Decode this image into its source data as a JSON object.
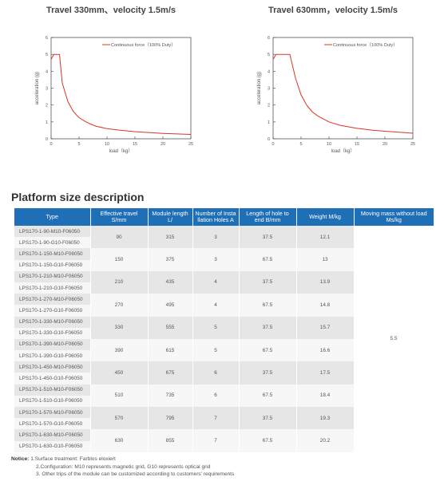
{
  "chart_data": [
    {
      "type": "line",
      "title": "Travel 330mm、velocity 1.5m/s",
      "xlabel": "load（kg）",
      "ylabel": "acceleration (g)",
      "xlim": [
        0,
        25
      ],
      "ylim": [
        0,
        6
      ],
      "xticks": [
        "0",
        "5",
        "10",
        "15",
        "20",
        "25"
      ],
      "yticks": [
        "0",
        "1",
        "2",
        "3",
        "4",
        "5",
        "6"
      ],
      "grid": false,
      "legend_position": "top-right",
      "series": [
        {
          "name": "Continuous force（100% Duty）",
          "color": "#d9352a",
          "x": [
            0,
            0.5,
            1,
            1.5,
            2,
            3,
            4,
            5,
            6,
            7,
            8,
            10,
            12,
            15,
            18,
            20,
            22,
            25
          ],
          "y": [
            4.7,
            5,
            5,
            5,
            3.3,
            2.2,
            1.6,
            1.25,
            1.05,
            0.88,
            0.75,
            0.6,
            0.52,
            0.42,
            0.36,
            0.32,
            0.3,
            0.26
          ]
        }
      ]
    },
    {
      "type": "line",
      "title": "Travel 630mm，velocity 1.5m/s",
      "xlabel": "load（kg）",
      "ylabel": "acceleration (g)",
      "xlim": [
        0,
        25
      ],
      "ylim": [
        0,
        6
      ],
      "xticks": [
        "0",
        "5",
        "10",
        "15",
        "20",
        "25"
      ],
      "yticks": [
        "0",
        "1",
        "2",
        "3",
        "4",
        "5",
        "6"
      ],
      "grid": false,
      "legend_position": "top-right",
      "series": [
        {
          "name": "Continuous force（100% Duty）",
          "color": "#d9352a",
          "x": [
            0,
            0.5,
            1,
            2,
            3,
            3.5,
            4,
            5,
            6,
            7,
            8,
            10,
            12,
            15,
            18,
            20,
            22,
            25
          ],
          "y": [
            4.7,
            5,
            5,
            5,
            5,
            4.3,
            3.6,
            2.6,
            2.0,
            1.6,
            1.35,
            1.0,
            0.8,
            0.62,
            0.5,
            0.45,
            0.4,
            0.33
          ]
        }
      ]
    }
  ],
  "section_title": "Platform size description",
  "table": {
    "headers": [
      "Type",
      "Effective travel S/mm",
      "Module length L/",
      "Number of Insta llation Holes A",
      "Length of hole to end B/mm",
      "Weight M/kg",
      "Moving mass without load Ms/kg"
    ],
    "groups": [
      {
        "types": [
          "LPS170-1-90-M10-F06050",
          "LPS170-1-90-G10-F06050"
        ],
        "travel": "90",
        "length": "315",
        "holes": "3",
        "b": "37.5",
        "weight": "12.1"
      },
      {
        "types": [
          "LPS170-1-150-M10-F06050",
          "LPS170-1-150-G10-F06050"
        ],
        "travel": "150",
        "length": "375",
        "holes": "3",
        "b": "67.5",
        "weight": "13"
      },
      {
        "types": [
          "LPS170-1-210-M10-F06050",
          "LPS170-1-210-G10-F06050"
        ],
        "travel": "210",
        "length": "435",
        "holes": "4",
        "b": "37.5",
        "weight": "13.9"
      },
      {
        "types": [
          "LPS170-1-270-M10-F06050",
          "LPS170-1-270-G10-F06050"
        ],
        "travel": "270",
        "length": "495",
        "holes": "4",
        "b": "67.5",
        "weight": "14.8"
      },
      {
        "types": [
          "LPS170-1-330-M10-F06050",
          "LPS170-1-330-G10-F06050"
        ],
        "travel": "330",
        "length": "555",
        "holes": "5",
        "b": "37.5",
        "weight": "15.7"
      },
      {
        "types": [
          "LPS170-1-390-M10-F06050",
          "LPS170-1-390-G10-F06050"
        ],
        "travel": "390",
        "length": "615",
        "holes": "5",
        "b": "67.5",
        "weight": "16.6"
      },
      {
        "types": [
          "LPS170-1-450-M10-F06050",
          "LPS170-1-450-G10-F06050"
        ],
        "travel": "450",
        "length": "675",
        "holes": "6",
        "b": "37.5",
        "weight": "17.5"
      },
      {
        "types": [
          "LPS170-1-510-M10-F06050",
          "LPS170-1-510-G10-F06050"
        ],
        "travel": "510",
        "length": "735",
        "holes": "6",
        "b": "67.5",
        "weight": "18.4"
      },
      {
        "types": [
          "LPS170-1-570-M10-F06050",
          "LPS170-1-570-G10-F06050"
        ],
        "travel": "570",
        "length": "795",
        "holes": "7",
        "b": "37.5",
        "weight": "19.3"
      },
      {
        "types": [
          "LPS170-1-630-M10-F06050",
          "LPS170-1-630-G10-F06050"
        ],
        "travel": "630",
        "length": "855",
        "holes": "7",
        "b": "67.5",
        "weight": "20.2"
      }
    ],
    "moving_mass": "5.5"
  },
  "notice": {
    "label": "Notice:",
    "lines": [
      "1.Surface treatment: Farblos eloxiert",
      "2.Configuration: M10 represents magnetic grid, G10 represents optical grid",
      "3. Other trips of the module can be customized according to customers' requirements"
    ]
  },
  "colors": {
    "header_blue": "#1e6fb6",
    "curve_red": "#d9352a",
    "row_shade": "#e6e6e6",
    "row_light": "#f7f7f7"
  }
}
